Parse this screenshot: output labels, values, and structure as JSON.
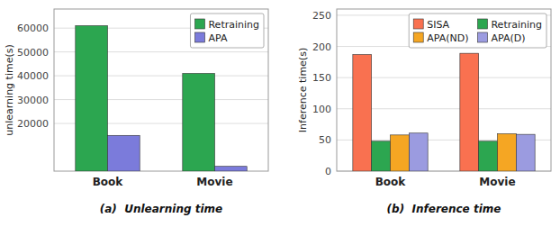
{
  "chart_data": [
    {
      "type": "bar",
      "title": "(a)  Unlearning time",
      "ylabel": "unlearning time(s)",
      "categories": [
        "Book",
        "Movie"
      ],
      "series": [
        {
          "name": "Retraining",
          "color": "#2ca650",
          "values": [
            61000,
            41000
          ]
        },
        {
          "name": "APA",
          "color": "#7b7bdb",
          "values": [
            15000,
            2000
          ]
        }
      ],
      "ylim": [
        0,
        68000
      ],
      "yticks": [
        20000,
        30000,
        40000,
        50000,
        60000
      ],
      "grid": true,
      "legend": "upper right"
    },
    {
      "type": "bar",
      "title": "(b)  Inference time",
      "ylabel": "Inference time(s)",
      "categories": [
        "Book",
        "Movie"
      ],
      "series": [
        {
          "name": "SISA",
          "color": "#f97150",
          "values": [
            187,
            189
          ]
        },
        {
          "name": "Retraining",
          "color": "#2ca650",
          "values": [
            48,
            48
          ]
        },
        {
          "name": "APA(ND)",
          "color": "#f5a623",
          "values": [
            58,
            60
          ]
        },
        {
          "name": "APA(D)",
          "color": "#9b9be0",
          "values": [
            61,
            59
          ]
        }
      ],
      "ylim": [
        0,
        260
      ],
      "yticks": [
        0,
        50,
        100,
        150,
        200,
        250
      ],
      "grid": true,
      "legend": "upper right"
    }
  ]
}
